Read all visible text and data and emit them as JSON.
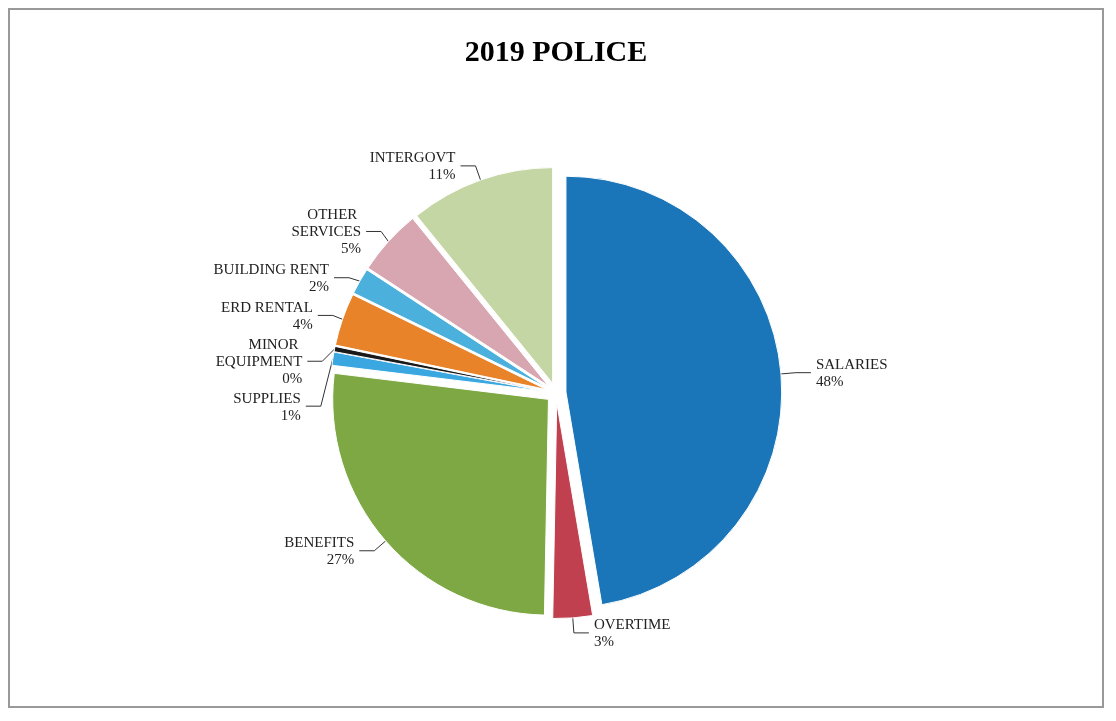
{
  "chart_data": {
    "type": "pie",
    "title": "2019 POLICE",
    "categories": [
      "SALARIES",
      "OVERTIME",
      "BENEFITS",
      "SUPPLIES",
      "MINOR EQUIPMENT",
      "ERD RENTAL",
      "BUILDING RENT",
      "OTHER SERVICES",
      "INTERGOVT"
    ],
    "values": [
      48,
      3,
      27,
      1,
      0.4,
      4,
      2,
      5,
      11
    ],
    "value_labels": [
      "48%",
      "3%",
      "27%",
      "1%",
      "0%",
      "4%",
      "2%",
      "5%",
      "11%"
    ],
    "colors": [
      "#1b75b9",
      "#c0404f",
      "#7ea843",
      "#3aa7e0",
      "#1a1a1a",
      "#e8832a",
      "#4cb0dc",
      "#d8a6b0",
      "#c5d6a5"
    ],
    "legend": false
  }
}
